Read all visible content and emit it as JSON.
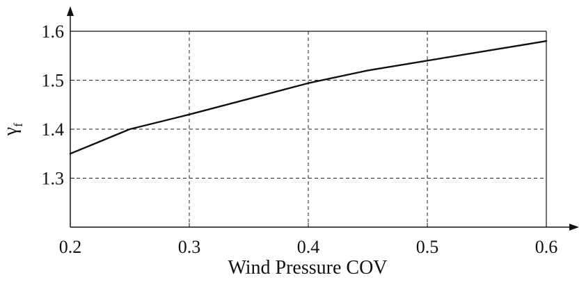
{
  "chart_data": {
    "type": "line",
    "title": "",
    "xlabel": "Wind Pressure COV",
    "ylabel": {
      "main": "γ",
      "subscript": "f"
    },
    "xlim": [
      0.2,
      0.6
    ],
    "ylim": [
      1.2,
      1.6
    ],
    "x_ticks": [
      0.2,
      0.3,
      0.4,
      0.5,
      0.6
    ],
    "x_tick_labels": [
      "0.2",
      "0.3",
      "0.4",
      "0.5",
      "0.6"
    ],
    "y_ticks": [
      1.3,
      1.4,
      1.5,
      1.6
    ],
    "y_tick_labels": [
      "1.3",
      "1.4",
      "1.5",
      "1.6"
    ],
    "grid": true,
    "grid_style": "dashed",
    "legend": "none",
    "line_color": "#111111",
    "series": [
      {
        "x": [
          0.2,
          0.25,
          0.3,
          0.35,
          0.4,
          0.45,
          0.5,
          0.55,
          0.6
        ],
        "y": [
          1.35,
          1.4,
          1.43,
          1.462,
          1.494,
          1.52,
          1.54,
          1.56,
          1.58
        ]
      }
    ]
  }
}
